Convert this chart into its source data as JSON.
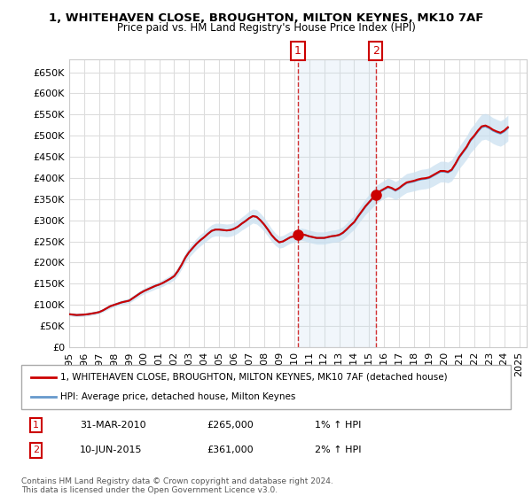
{
  "title1": "1, WHITEHAVEN CLOSE, BROUGHTON, MILTON KEYNES, MK10 7AF",
  "title2": "Price paid vs. HM Land Registry's House Price Index (HPI)",
  "ylabel": "",
  "ylim": [
    0,
    680000
  ],
  "yticks": [
    0,
    50000,
    100000,
    150000,
    200000,
    250000,
    300000,
    350000,
    400000,
    450000,
    500000,
    550000,
    600000,
    650000
  ],
  "xlim_start": 1995.0,
  "xlim_end": 2025.5,
  "sale1_x": 2010.25,
  "sale1_y": 265000,
  "sale1_label": "31-MAR-2010",
  "sale1_price": "£265,000",
  "sale1_hpi": "1% ↑ HPI",
  "sale2_x": 2015.44,
  "sale2_y": 361000,
  "sale2_label": "10-JUN-2015",
  "sale2_price": "£361,000",
  "sale2_hpi": "2% ↑ HPI",
  "line_color_price": "#cc0000",
  "line_color_hpi": "#6699cc",
  "fill_color_hpi": "#c8dff0",
  "vline_color": "#cc0000",
  "background_color": "#ffffff",
  "grid_color": "#dddddd",
  "legend1": "1, WHITEHAVEN CLOSE, BROUGHTON, MILTON KEYNES, MK10 7AF (detached house)",
  "legend2": "HPI: Average price, detached house, Milton Keynes",
  "footnote": "Contains HM Land Registry data © Crown copyright and database right 2024.\nThis data is licensed under the Open Government Licence v3.0.",
  "hpi_data": {
    "years": [
      1995.0,
      1995.25,
      1995.5,
      1995.75,
      1996.0,
      1996.25,
      1996.5,
      1996.75,
      1997.0,
      1997.25,
      1997.5,
      1997.75,
      1998.0,
      1998.25,
      1998.5,
      1998.75,
      1999.0,
      1999.25,
      1999.5,
      1999.75,
      2000.0,
      2000.25,
      2000.5,
      2000.75,
      2001.0,
      2001.25,
      2001.5,
      2001.75,
      2002.0,
      2002.25,
      2002.5,
      2002.75,
      2003.0,
      2003.25,
      2003.5,
      2003.75,
      2004.0,
      2004.25,
      2004.5,
      2004.75,
      2005.0,
      2005.25,
      2005.5,
      2005.75,
      2006.0,
      2006.25,
      2006.5,
      2006.75,
      2007.0,
      2007.25,
      2007.5,
      2007.75,
      2008.0,
      2008.25,
      2008.5,
      2008.75,
      2009.0,
      2009.25,
      2009.5,
      2009.75,
      2010.0,
      2010.25,
      2010.5,
      2010.75,
      2011.0,
      2011.25,
      2011.5,
      2011.75,
      2012.0,
      2012.25,
      2012.5,
      2012.75,
      2013.0,
      2013.25,
      2013.5,
      2013.75,
      2014.0,
      2014.25,
      2014.5,
      2014.75,
      2015.0,
      2015.25,
      2015.5,
      2015.75,
      2016.0,
      2016.25,
      2016.5,
      2016.75,
      2017.0,
      2017.25,
      2017.5,
      2017.75,
      2018.0,
      2018.25,
      2018.5,
      2018.75,
      2019.0,
      2019.25,
      2019.5,
      2019.75,
      2020.0,
      2020.25,
      2020.5,
      2020.75,
      2021.0,
      2021.25,
      2021.5,
      2021.75,
      2022.0,
      2022.25,
      2022.5,
      2022.75,
      2023.0,
      2023.25,
      2023.5,
      2023.75,
      2024.0,
      2024.25
    ],
    "values": [
      78000,
      77000,
      76000,
      76500,
      77000,
      78000,
      79500,
      81000,
      83000,
      87000,
      92000,
      97000,
      100000,
      103000,
      106000,
      108000,
      110000,
      116000,
      122000,
      128000,
      133000,
      137000,
      141000,
      145000,
      148000,
      152000,
      157000,
      162000,
      168000,
      180000,
      195000,
      212000,
      225000,
      235000,
      245000,
      253000,
      260000,
      268000,
      275000,
      278000,
      278000,
      277000,
      276000,
      277000,
      280000,
      285000,
      292000,
      298000,
      305000,
      310000,
      308000,
      300000,
      290000,
      278000,
      265000,
      255000,
      248000,
      250000,
      255000,
      260000,
      262000,
      265000,
      267000,
      265000,
      262000,
      260000,
      258000,
      258000,
      258000,
      260000,
      262000,
      263000,
      265000,
      270000,
      278000,
      287000,
      295000,
      308000,
      320000,
      332000,
      342000,
      352000,
      362000,
      368000,
      373000,
      378000,
      375000,
      370000,
      375000,
      382000,
      388000,
      390000,
      392000,
      395000,
      397000,
      398000,
      400000,
      405000,
      410000,
      415000,
      415000,
      413000,
      418000,
      432000,
      448000,
      460000,
      472000,
      488000,
      498000,
      510000,
      520000,
      522000,
      518000,
      512000,
      508000,
      505000,
      510000,
      518000
    ],
    "lower": [
      74000,
      73000,
      72000,
      72500,
      73000,
      74000,
      75500,
      77000,
      79000,
      83000,
      87500,
      92000,
      95000,
      98000,
      100500,
      102500,
      104500,
      110000,
      115500,
      121500,
      126500,
      130000,
      133500,
      137500,
      140500,
      144000,
      149000,
      153500,
      159000,
      170000,
      185000,
      201000,
      213000,
      222500,
      232000,
      239500,
      246500,
      254000,
      260500,
      263000,
      263000,
      262000,
      261000,
      262000,
      265000,
      270000,
      276500,
      282000,
      288000,
      293500,
      291000,
      283500,
      273500,
      262500,
      250000,
      240500,
      234000,
      236000,
      241000,
      246000,
      248000,
      250500,
      252500,
      250500,
      247500,
      245500,
      243500,
      243500,
      243500,
      245500,
      247500,
      248500,
      250000,
      255000,
      262500,
      271000,
      278500,
      291000,
      302500,
      313500,
      322500,
      331500,
      341000,
      347000,
      351500,
      356000,
      353500,
      348500,
      353500,
      360000,
      365500,
      367500,
      369500,
      372000,
      373500,
      374500,
      376500,
      380500,
      385500,
      390500,
      390500,
      388500,
      393000,
      406500,
      422000,
      433000,
      444500,
      459500,
      469000,
      480000,
      489500,
      491500,
      487500,
      481500,
      477500,
      475000,
      480000,
      487500
    ],
    "upper": [
      82000,
      81000,
      80000,
      80500,
      81000,
      82000,
      83500,
      85000,
      87000,
      91000,
      96500,
      102000,
      105000,
      108000,
      111500,
      113500,
      115500,
      122000,
      128500,
      134500,
      139500,
      144000,
      148500,
      152500,
      155500,
      160000,
      165000,
      170500,
      177000,
      190000,
      205000,
      223000,
      237000,
      247500,
      258000,
      266500,
      273500,
      282000,
      289500,
      293000,
      293000,
      292000,
      291000,
      292000,
      295000,
      300000,
      307500,
      314000,
      322000,
      326500,
      325000,
      316500,
      306500,
      293500,
      280000,
      269500,
      262000,
      264000,
      269000,
      274000,
      276000,
      279500,
      281500,
      279500,
      276500,
      274500,
      272500,
      272500,
      272500,
      274500,
      276500,
      277500,
      280000,
      285000,
      293500,
      303000,
      311500,
      325000,
      337500,
      350500,
      361500,
      372500,
      383000,
      389000,
      394500,
      400000,
      396500,
      391500,
      396500,
      404000,
      410500,
      412500,
      414500,
      418000,
      420500,
      421500,
      423500,
      429500,
      434500,
      439500,
      439500,
      437500,
      443000,
      457500,
      474000,
      487000,
      499500,
      516500,
      527000,
      540000,
      550500,
      552500,
      548500,
      542500,
      538500,
      535000,
      540000,
      548500
    ]
  }
}
